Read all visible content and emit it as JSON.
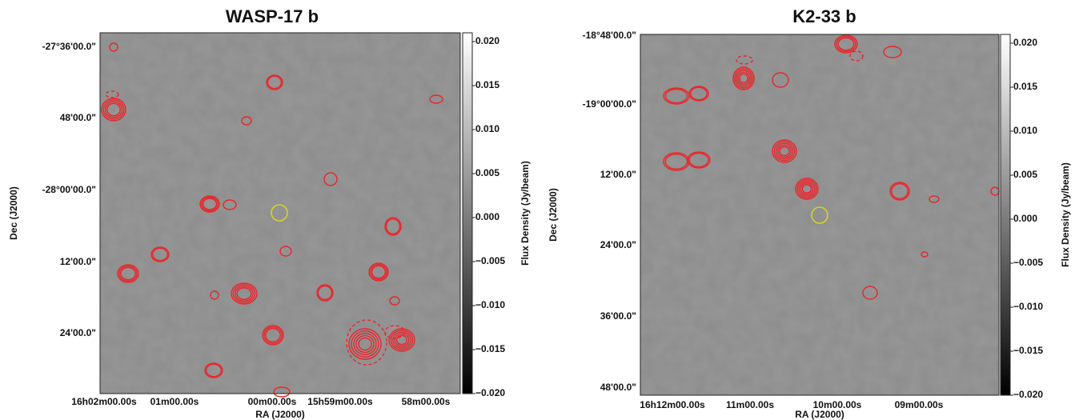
{
  "chart_data": [
    {
      "type": "image",
      "title": "WASP-17 b",
      "xlabel": "RA (J2000)",
      "ylabel": "Dec (J2000)",
      "xtick_labels": [
        "16h02m00.00s",
        "01m00.00s",
        "00m00.00s",
        "15h59m00.00s",
        "58m00.00s"
      ],
      "ytick_labels": [
        "-27°36'00.0\"",
        "48'00.0\"",
        "-28°00'00.0\"",
        "12'00.0\"",
        "24'00.0\""
      ],
      "colorbar": {
        "label": "Flux Density (Jy/beam)",
        "lim": [
          -0.02,
          0.021
        ],
        "ticks": [
          {
            "value": 0.02,
            "label": "0.020"
          },
          0.015,
          {
            "value": 0.01,
            "label": "0.010"
          },
          0.005,
          {
            "value": 0,
            "label": "0.000"
          },
          {
            "value": -0.005,
            "label": "−0.005"
          },
          {
            "value": -0.01,
            "label": "−0.010"
          },
          {
            "value": -0.015,
            "label": "−0.015"
          },
          {
            "value": -0.02,
            "label": "−0.020"
          }
        ]
      },
      "contour_color": "#e8262b",
      "marker_color": "#d4d42a"
    },
    {
      "type": "image",
      "title": "K2-33 b",
      "xlabel": "RA (J2000)",
      "ylabel": "Dec (J2000)",
      "xtick_labels": [
        "16h12m00.00s",
        "11m00.00s",
        "10m00.00s",
        "09m00.00s"
      ],
      "ytick_labels": [
        "-18°48'00.0\"",
        "-19°00'00.0\"",
        "12'00.0\"",
        "24'00.0\"",
        "36'00.0\"",
        "48'00.0\""
      ],
      "colorbar": {
        "label": "Flux Density (Jy/beam)",
        "lim": [
          -0.02,
          0.021
        ],
        "ticks": [
          {
            "value": 0.02,
            "label": "0.020"
          },
          0.015,
          {
            "value": 0.01,
            "label": "0.010"
          },
          0.005,
          {
            "value": 0,
            "label": "0.000"
          },
          {
            "value": -0.005,
            "label": "−0.005"
          },
          {
            "value": -0.01,
            "label": "−0.010"
          },
          {
            "value": -0.015,
            "label": "−0.015"
          },
          {
            "value": -0.02,
            "label": "−0.020"
          }
        ]
      },
      "contour_color": "#e8262b",
      "marker_color": "#d4d42a"
    }
  ]
}
